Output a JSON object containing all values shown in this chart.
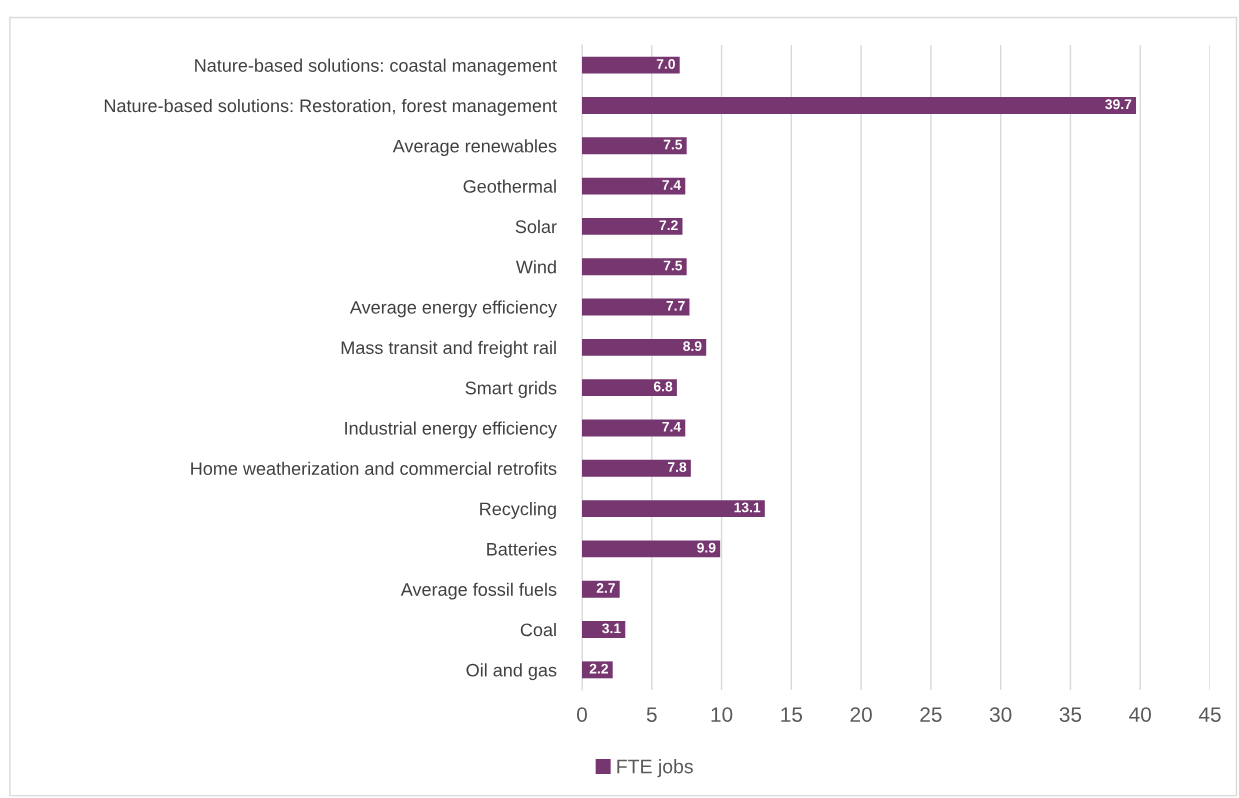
{
  "chart_data": {
    "type": "bar",
    "orientation": "horizontal",
    "categories": [
      "Nature-based solutions: coastal management",
      "Nature-based solutions: Restoration, forest management",
      "Average renewables",
      "Geothermal",
      "Solar",
      "Wind",
      "Average energy efficiency",
      "Mass transit and freight rail",
      "Smart grids",
      "Industrial energy efficiency",
      "Home weatherization and commercial retrofits",
      "Recycling",
      "Batteries",
      "Average fossil fuels",
      "Coal",
      "Oil and gas"
    ],
    "series": [
      {
        "name": "FTE jobs",
        "color": "#76366f",
        "values": [
          7.0,
          39.7,
          7.5,
          7.4,
          7.2,
          7.5,
          7.7,
          8.9,
          6.8,
          7.4,
          7.8,
          13.1,
          9.9,
          2.7,
          3.1,
          2.2
        ],
        "value_labels": [
          "7.0",
          "39.7",
          "7.5",
          "7.4",
          "7.2",
          "7.5",
          "7.7",
          "8.9",
          "6.8",
          "7.4",
          "7.8",
          "13.1",
          "9.9",
          "2.7",
          "3.1",
          "2.2"
        ]
      }
    ],
    "xlim": [
      0,
      45
    ],
    "xticks": [
      0,
      5,
      10,
      15,
      20,
      25,
      30,
      35,
      40,
      45
    ],
    "grid": "x",
    "legend": "bottom"
  }
}
